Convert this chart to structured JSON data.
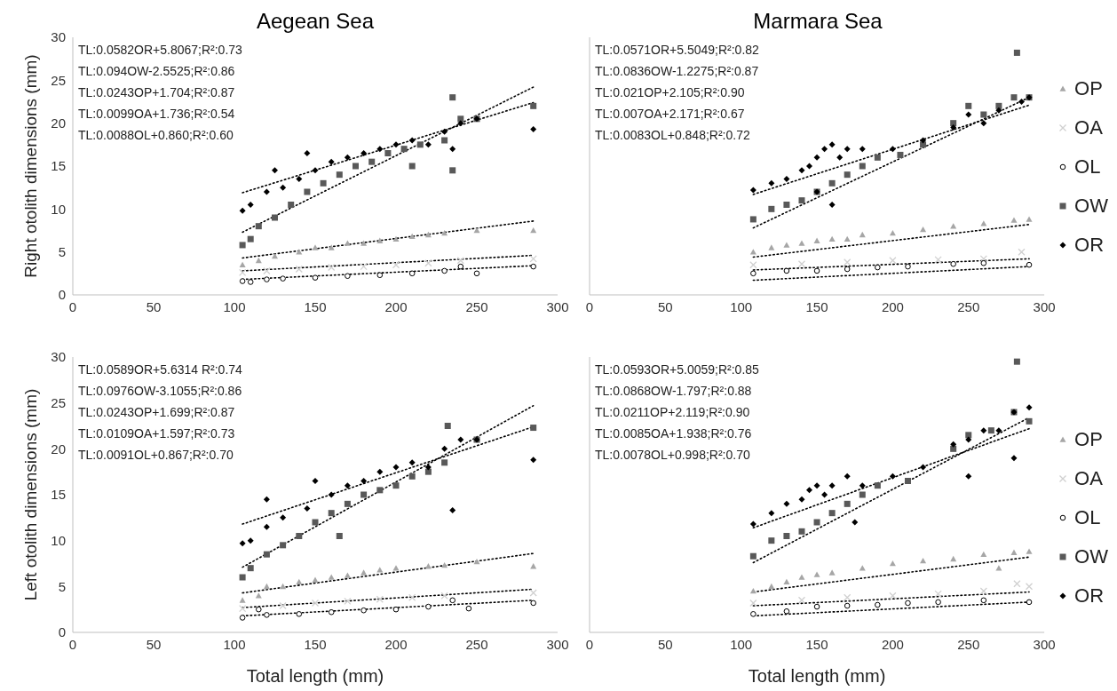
{
  "chart_data": [
    {
      "type": "scatter",
      "title": "Aegean Sea",
      "ylabel": "Right otolith dimensions (mm)",
      "xlim": [
        0,
        300
      ],
      "xticks": [
        0,
        50,
        100,
        150,
        200,
        250,
        300
      ],
      "ylim": [
        0,
        30
      ],
      "yticks": [
        0,
        5,
        10,
        15,
        20,
        25,
        30
      ],
      "grid": false,
      "legend": false,
      "annotations": [
        "TL:0.0582OR+5.8067;R²:0.73",
        "TL:0.094OW-2.5525;R²:0.86",
        "TL:0.0243OP+1.704;R²:0.87",
        "TL:0.0099OA+1.736;R²:0.54",
        "TL:0.0088OL+0.860;R²:0.60"
      ],
      "series": [
        {
          "type": "scatter",
          "marker": "triangle",
          "color": "#a6a6a6",
          "x": [
            105,
            115,
            125,
            140,
            150,
            160,
            170,
            180,
            190,
            200,
            210,
            220,
            230,
            250,
            285
          ],
          "values": [
            3.5,
            4,
            4.5,
            5,
            5.5,
            5.5,
            6,
            6,
            6.3,
            6.5,
            6.8,
            7,
            7.2,
            7.5,
            7.5
          ]
        },
        {
          "type": "scatter",
          "marker": "cross",
          "color": "#d0d0d0",
          "x": [
            105,
            120,
            140,
            160,
            180,
            200,
            220,
            240,
            285
          ],
          "values": [
            2.6,
            2.8,
            3,
            3.2,
            3.3,
            3.5,
            3.7,
            4,
            4.2
          ]
        },
        {
          "type": "scatter",
          "marker": "circle",
          "color": "#000000",
          "x": [
            105,
            110,
            120,
            130,
            150,
            170,
            190,
            210,
            230,
            240,
            250,
            285
          ],
          "values": [
            1.6,
            1.5,
            1.8,
            1.9,
            2,
            2.2,
            2.3,
            2.5,
            2.8,
            3.3,
            2.5,
            3.3
          ]
        },
        {
          "type": "scatter",
          "marker": "square",
          "color": "#595959",
          "x": [
            105,
            110,
            115,
            125,
            135,
            145,
            155,
            165,
            175,
            185,
            195,
            205,
            215,
            230,
            235,
            240,
            250,
            285,
            210,
            235
          ],
          "values": [
            5.8,
            6.5,
            8,
            9,
            10.5,
            12,
            13,
            14,
            15,
            15.5,
            16.5,
            17,
            17.5,
            18,
            23,
            20.5,
            20.5,
            22,
            15,
            14.5
          ]
        },
        {
          "type": "scatter",
          "marker": "diamond",
          "color": "#000000",
          "x": [
            105,
            110,
            120,
            125,
            130,
            140,
            150,
            160,
            170,
            180,
            190,
            200,
            210,
            220,
            230,
            240,
            250,
            285,
            235,
            145
          ],
          "values": [
            9.8,
            10.5,
            12,
            14.5,
            12.5,
            13.5,
            14.5,
            15.5,
            16,
            16.5,
            17,
            17.5,
            18,
            17.5,
            19,
            20,
            20.5,
            19.3,
            17,
            16.5
          ]
        },
        {
          "type": "line",
          "line_style": "dotted",
          "color": "#000000",
          "x": [
            105,
            285
          ],
          "values": [
            4.3,
            8.6
          ]
        },
        {
          "type": "line",
          "line_style": "dotted",
          "color": "#000000",
          "x": [
            105,
            285
          ],
          "values": [
            2.8,
            4.6
          ]
        },
        {
          "type": "line",
          "line_style": "dotted",
          "color": "#000000",
          "x": [
            105,
            285
          ],
          "values": [
            1.8,
            3.4
          ]
        },
        {
          "type": "line",
          "line_style": "dotted",
          "color": "#000000",
          "x": [
            105,
            285
          ],
          "values": [
            7.3,
            24.2
          ]
        },
        {
          "type": "line",
          "line_style": "dotted",
          "color": "#000000",
          "x": [
            105,
            285
          ],
          "values": [
            11.9,
            22.4
          ]
        }
      ]
    },
    {
      "type": "scatter",
      "title": "Marmara Sea",
      "xlim": [
        0,
        300
      ],
      "xticks": [
        0,
        50,
        100,
        150,
        200,
        250,
        300
      ],
      "ylim": [
        0,
        30
      ],
      "yticks": [
        0,
        5,
        10,
        15,
        20,
        25,
        30
      ],
      "tick_labels": "x",
      "grid": false,
      "legend": "right",
      "annotations": [
        "TL:0.0571OR+5.5049;R²:0.82",
        "TL:0.0836OW-1.2275;R²:0.87",
        "TL:0.021OP+2.105;R²:0.90",
        "TL:0.007OA+2.171;R²:0.67",
        "TL:0.0083OL+0.848;R²:0.72"
      ],
      "series": [
        {
          "name": "OP",
          "type": "scatter",
          "marker": "triangle",
          "color": "#a6a6a6",
          "x": [
            108,
            120,
            130,
            140,
            150,
            160,
            170,
            180,
            200,
            220,
            240,
            260,
            280,
            290
          ],
          "values": [
            5,
            5.5,
            5.8,
            6,
            6.3,
            6.5,
            6.5,
            7,
            7.2,
            7.6,
            8,
            8.3,
            8.7,
            8.8
          ]
        },
        {
          "name": "OA",
          "type": "scatter",
          "marker": "cross",
          "color": "#d0d0d0",
          "x": [
            108,
            140,
            170,
            200,
            230,
            260,
            285
          ],
          "values": [
            3.5,
            3.6,
            3.8,
            4,
            4.1,
            4.2,
            5
          ]
        },
        {
          "name": "OL",
          "type": "scatter",
          "marker": "circle",
          "color": "#000000",
          "x": [
            108,
            130,
            150,
            170,
            190,
            210,
            240,
            260,
            290
          ],
          "values": [
            2.5,
            2.8,
            2.8,
            3,
            3.2,
            3.3,
            3.6,
            3.7,
            3.5
          ]
        },
        {
          "name": "OW",
          "type": "scatter",
          "marker": "square",
          "color": "#595959",
          "x": [
            108,
            120,
            130,
            140,
            150,
            160,
            170,
            180,
            190,
            205,
            220,
            240,
            250,
            260,
            270,
            280,
            282,
            290
          ],
          "values": [
            8.8,
            10,
            10.5,
            11,
            12,
            13,
            14,
            15,
            16,
            16.3,
            17.5,
            20,
            22,
            21,
            22,
            23,
            28.2,
            23
          ]
        },
        {
          "name": "OR",
          "type": "scatter",
          "marker": "diamond",
          "color": "#000000",
          "x": [
            108,
            120,
            130,
            140,
            145,
            150,
            155,
            160,
            165,
            170,
            180,
            150,
            160,
            200,
            220,
            240,
            250,
            260,
            270,
            285,
            290
          ],
          "values": [
            12.2,
            13,
            13.5,
            14.5,
            15,
            16,
            17,
            17.5,
            16,
            17,
            17,
            12,
            10.5,
            17,
            18,
            19.5,
            21,
            20,
            21.5,
            22.5,
            23
          ]
        },
        {
          "type": "line",
          "line_style": "dotted",
          "color": "#000000",
          "x": [
            108,
            290
          ],
          "values": [
            4.4,
            8.2
          ]
        },
        {
          "type": "line",
          "line_style": "dotted",
          "color": "#000000",
          "x": [
            108,
            290
          ],
          "values": [
            2.9,
            4.2
          ]
        },
        {
          "type": "line",
          "line_style": "dotted",
          "color": "#000000",
          "x": [
            108,
            290
          ],
          "values": [
            1.7,
            3.3
          ]
        },
        {
          "type": "line",
          "line_style": "dotted",
          "color": "#000000",
          "x": [
            108,
            290
          ],
          "values": [
            7.8,
            23
          ]
        },
        {
          "type": "line",
          "line_style": "dotted",
          "color": "#000000",
          "x": [
            108,
            290
          ],
          "values": [
            11.7,
            22.1
          ]
        }
      ]
    },
    {
      "type": "scatter",
      "xlabel": "Total length (mm)",
      "ylabel": "Left otolith dimensions (mm)",
      "xlim": [
        0,
        300
      ],
      "xticks": [
        0,
        50,
        100,
        150,
        200,
        250,
        300
      ],
      "ylim": [
        0,
        30
      ],
      "yticks": [
        0,
        5,
        10,
        15,
        20,
        25,
        30
      ],
      "grid": false,
      "legend": false,
      "annotations": [
        "TL:0.0589OR+5.6314 R²:0.74",
        "TL:0.0976OW-3.1055;R²:0.86",
        "TL:0.0243OP+1.699;R²:0.87",
        "TL:0.0109OA+1.597;R²:0.73",
        "TL:0.0091OL+0.867;R²:0.70"
      ],
      "series": [
        {
          "type": "scatter",
          "marker": "triangle",
          "color": "#a6a6a6",
          "x": [
            105,
            115,
            120,
            130,
            140,
            150,
            160,
            170,
            180,
            190,
            200,
            220,
            230,
            250,
            285
          ],
          "values": [
            3.5,
            4,
            5,
            5,
            5.5,
            5.7,
            6,
            6.2,
            6.5,
            6.8,
            7,
            7.2,
            7.3,
            7.7,
            7.2
          ]
        },
        {
          "type": "scatter",
          "marker": "cross",
          "color": "#d0d0d0",
          "x": [
            105,
            130,
            150,
            170,
            190,
            210,
            230,
            285
          ],
          "values": [
            2.6,
            2.9,
            3.2,
            3.4,
            3.6,
            3.8,
            4,
            4.3
          ]
        },
        {
          "type": "scatter",
          "marker": "circle",
          "color": "#000000",
          "x": [
            105,
            115,
            120,
            140,
            160,
            180,
            200,
            220,
            235,
            245,
            285
          ],
          "values": [
            1.6,
            2.5,
            1.9,
            2,
            2.2,
            2.4,
            2.5,
            2.8,
            3.5,
            2.6,
            3.2
          ]
        },
        {
          "type": "scatter",
          "marker": "square",
          "color": "#595959",
          "x": [
            105,
            110,
            120,
            130,
            140,
            150,
            160,
            165,
            170,
            180,
            190,
            200,
            210,
            220,
            230,
            232,
            250,
            285
          ],
          "values": [
            6,
            7,
            8.5,
            9.5,
            10.5,
            12,
            13,
            10.5,
            14,
            15,
            15.5,
            16,
            17,
            17.5,
            18.5,
            22.5,
            21,
            22.3
          ]
        },
        {
          "type": "scatter",
          "marker": "diamond",
          "color": "#000000",
          "x": [
            105,
            110,
            120,
            120,
            130,
            145,
            150,
            160,
            170,
            180,
            190,
            200,
            210,
            220,
            230,
            240,
            250,
            235,
            285
          ],
          "values": [
            9.7,
            10,
            11.5,
            14.5,
            12.5,
            13.5,
            16.5,
            15,
            16,
            16.5,
            17.5,
            18,
            18.5,
            18,
            20,
            21,
            21,
            13.3,
            18.8
          ]
        },
        {
          "type": "line",
          "line_style": "dotted",
          "color": "#000000",
          "x": [
            105,
            285
          ],
          "values": [
            4.3,
            8.6
          ]
        },
        {
          "type": "line",
          "line_style": "dotted",
          "color": "#000000",
          "x": [
            105,
            285
          ],
          "values": [
            2.7,
            4.7
          ]
        },
        {
          "type": "line",
          "line_style": "dotted",
          "color": "#000000",
          "x": [
            105,
            285
          ],
          "values": [
            1.8,
            3.5
          ]
        },
        {
          "type": "line",
          "line_style": "dotted",
          "color": "#000000",
          "x": [
            105,
            285
          ],
          "values": [
            7.1,
            24.7
          ]
        },
        {
          "type": "line",
          "line_style": "dotted",
          "color": "#000000",
          "x": [
            105,
            285
          ],
          "values": [
            11.8,
            22.4
          ]
        }
      ]
    },
    {
      "type": "scatter",
      "xlabel": "Total length (mm)",
      "xlim": [
        0,
        300
      ],
      "xticks": [
        0,
        50,
        100,
        150,
        200,
        250,
        300
      ],
      "ylim": [
        0,
        30
      ],
      "yticks": [
        0,
        5,
        10,
        15,
        20,
        25,
        30
      ],
      "tick_labels": "x",
      "grid": false,
      "legend": "right",
      "annotations": [
        "TL:0.0593OR+5.0059;R²:0.85",
        "TL:0.0868OW-1.797;R²:0.88",
        "TL:0.0211OP+2.119;R²:0.90",
        "TL:0.0085OA+1.938;R²:0.76",
        "TL:0.0078OL+0.998;R²:0.70"
      ],
      "series": [
        {
          "name": "OP",
          "type": "scatter",
          "marker": "triangle",
          "color": "#a6a6a6",
          "x": [
            108,
            120,
            130,
            140,
            150,
            160,
            180,
            200,
            220,
            240,
            260,
            270,
            280,
            290
          ],
          "values": [
            4.5,
            5,
            5.5,
            6,
            6.3,
            6.5,
            7,
            7.5,
            7.8,
            8,
            8.5,
            7,
            8.7,
            8.8
          ]
        },
        {
          "name": "OA",
          "type": "scatter",
          "marker": "cross",
          "color": "#d0d0d0",
          "x": [
            108,
            140,
            170,
            200,
            230,
            260,
            282,
            290
          ],
          "values": [
            3.2,
            3.5,
            3.8,
            4,
            4.2,
            4.5,
            5.3,
            5
          ]
        },
        {
          "name": "OL",
          "type": "scatter",
          "marker": "circle",
          "color": "#000000",
          "x": [
            108,
            130,
            150,
            170,
            190,
            210,
            230,
            260,
            290
          ],
          "values": [
            2,
            2.3,
            2.8,
            2.9,
            3,
            3.2,
            3.3,
            3.5,
            3.3
          ]
        },
        {
          "name": "OW",
          "type": "scatter",
          "marker": "square",
          "color": "#595959",
          "x": [
            108,
            120,
            130,
            140,
            150,
            160,
            170,
            180,
            190,
            210,
            240,
            250,
            265,
            280,
            282,
            290
          ],
          "values": [
            8.3,
            10,
            10.5,
            11,
            12,
            13,
            14,
            15,
            16,
            16.5,
            20,
            21.5,
            22,
            24,
            29.5,
            23
          ]
        },
        {
          "name": "OR",
          "type": "scatter",
          "marker": "diamond",
          "color": "#000000",
          "x": [
            108,
            120,
            130,
            140,
            145,
            150,
            155,
            160,
            170,
            180,
            175,
            200,
            220,
            240,
            250,
            260,
            270,
            280,
            290,
            280,
            250
          ],
          "values": [
            11.8,
            13,
            14,
            14.5,
            15.5,
            16,
            15,
            16,
            17,
            16,
            12,
            17,
            18,
            20.5,
            21,
            22,
            22,
            24,
            24.5,
            19,
            17
          ]
        },
        {
          "type": "line",
          "line_style": "dotted",
          "color": "#000000",
          "x": [
            108,
            290
          ],
          "values": [
            4.4,
            8.2
          ]
        },
        {
          "type": "line",
          "line_style": "dotted",
          "color": "#000000",
          "x": [
            108,
            290
          ],
          "values": [
            2.9,
            4.4
          ]
        },
        {
          "type": "line",
          "line_style": "dotted",
          "color": "#000000",
          "x": [
            108,
            290
          ],
          "values": [
            1.8,
            3.3
          ]
        },
        {
          "type": "line",
          "line_style": "dotted",
          "color": "#000000",
          "x": [
            108,
            290
          ],
          "values": [
            7.6,
            23.4
          ]
        },
        {
          "type": "line",
          "line_style": "dotted",
          "color": "#000000",
          "x": [
            108,
            290
          ],
          "values": [
            11.4,
            22.2
          ]
        }
      ]
    }
  ]
}
